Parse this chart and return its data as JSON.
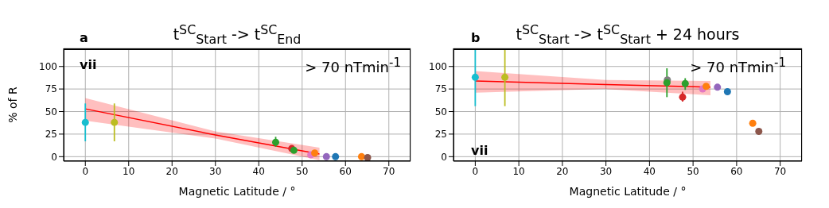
{
  "chart_data": [
    {
      "type": "scatter",
      "title": "t$^{SC}$$_{Start}$ -> t$^{SC}$$_{End}$",
      "xlabel": "Magnetic Latitude / °",
      "ylabel": "% of R",
      "xlim": [
        -5,
        75
      ],
      "xticks": [
        0,
        10,
        20,
        30,
        40,
        50,
        60,
        70
      ],
      "ylim": [
        -5,
        120
      ],
      "yticks": [
        0,
        25,
        50,
        75,
        100
      ],
      "grid": true,
      "marker": "circle",
      "annotations": [
        "a",
        "vii",
        "> 70 nTmin$^{-1}$"
      ],
      "series": [
        {
          "type": "line",
          "marker": "none",
          "color": "#ff0000",
          "x": [
            0,
            30,
            54
          ],
          "values": [
            53,
            24,
            3
          ],
          "lower": [
            40,
            20,
            -4
          ],
          "upper": [
            65,
            28,
            10
          ]
        },
        {
          "color": "#17becf",
          "x": [
            0
          ],
          "values": [
            38
          ],
          "errors": [
            [
              17,
              59
            ]
          ]
        },
        {
          "color": "#bcbd22",
          "x": [
            6.7
          ],
          "values": [
            38
          ],
          "errors": [
            [
              17,
              59
            ]
          ]
        },
        {
          "color": "#2ca02c",
          "x": [
            43.9
          ],
          "values": [
            16
          ],
          "errors": [
            [
              11,
              22
            ]
          ]
        },
        {
          "color": "#d62728",
          "x": [
            47.6
          ],
          "values": [
            9
          ]
        },
        {
          "color": "#2ca02c",
          "x": [
            48.1
          ],
          "values": [
            7
          ]
        },
        {
          "color": "#e377c2",
          "x": [
            52
          ],
          "values": [
            2
          ]
        },
        {
          "color": "#ff7f0e",
          "x": [
            52.9
          ],
          "values": [
            4
          ]
        },
        {
          "color": "#9467bd",
          "x": [
            55.6
          ],
          "values": [
            0
          ]
        },
        {
          "color": "#1f77b4",
          "x": [
            57.7
          ],
          "values": [
            0
          ]
        },
        {
          "color": "#ff7f0e",
          "x": [
            63.7
          ],
          "values": [
            0
          ]
        },
        {
          "color": "#8c564b",
          "x": [
            65.1
          ],
          "values": [
            -1
          ]
        }
      ]
    },
    {
      "type": "scatter",
      "title": "t$^{SC}$$_{Start}$ -> t$^{SC}$$_{Start}$ + 24 hours",
      "xlabel": "Magnetic Latitude / °",
      "xlim": [
        -5,
        75
      ],
      "xticks": [
        0,
        10,
        20,
        30,
        40,
        50,
        60,
        70
      ],
      "ylim": [
        -5,
        120
      ],
      "yticks": [
        0,
        25,
        50,
        75,
        100
      ],
      "grid": true,
      "marker": "circle",
      "annotations": [
        "b",
        "vii",
        "> 70 nTmin$^{-1}$"
      ],
      "series": [
        {
          "type": "line",
          "marker": "none",
          "color": "#ff0000",
          "x": [
            0,
            30,
            54
          ],
          "values": [
            84,
            80,
            77
          ],
          "lower": [
            71,
            75,
            68
          ],
          "upper": [
            95,
            85,
            84
          ]
        },
        {
          "color": "#17becf",
          "x": [
            0
          ],
          "values": [
            88
          ],
          "errors": [
            [
              56,
              120
            ]
          ]
        },
        {
          "color": "#bcbd22",
          "x": [
            6.8
          ],
          "values": [
            88
          ],
          "errors": [
            [
              56,
              120
            ]
          ]
        },
        {
          "color": "#7f7f7f",
          "x": [
            44.1
          ],
          "values": [
            85
          ]
        },
        {
          "color": "#2ca02c",
          "x": [
            44
          ],
          "values": [
            82
          ],
          "errors": [
            [
              66,
              98
            ]
          ]
        },
        {
          "color": "#2ca02c",
          "x": [
            48.2
          ],
          "values": [
            81
          ],
          "errors": [
            [
              74,
              87
            ]
          ]
        },
        {
          "color": "#d62728",
          "x": [
            47.6
          ],
          "values": [
            66
          ],
          "errors": [
            [
              61,
              72
            ]
          ]
        },
        {
          "color": "#e377c2",
          "x": [
            52.2
          ],
          "values": [
            75
          ]
        },
        {
          "color": "#ff7f0e",
          "x": [
            53
          ],
          "values": [
            78
          ]
        },
        {
          "color": "#9467bd",
          "x": [
            55.6
          ],
          "values": [
            77
          ]
        },
        {
          "color": "#1f77b4",
          "x": [
            57.9
          ],
          "values": [
            72
          ]
        },
        {
          "color": "#ff7f0e",
          "x": [
            63.7
          ],
          "values": [
            37
          ]
        },
        {
          "color": "#8c564b",
          "x": [
            65.1
          ],
          "values": [
            28
          ]
        }
      ]
    }
  ]
}
